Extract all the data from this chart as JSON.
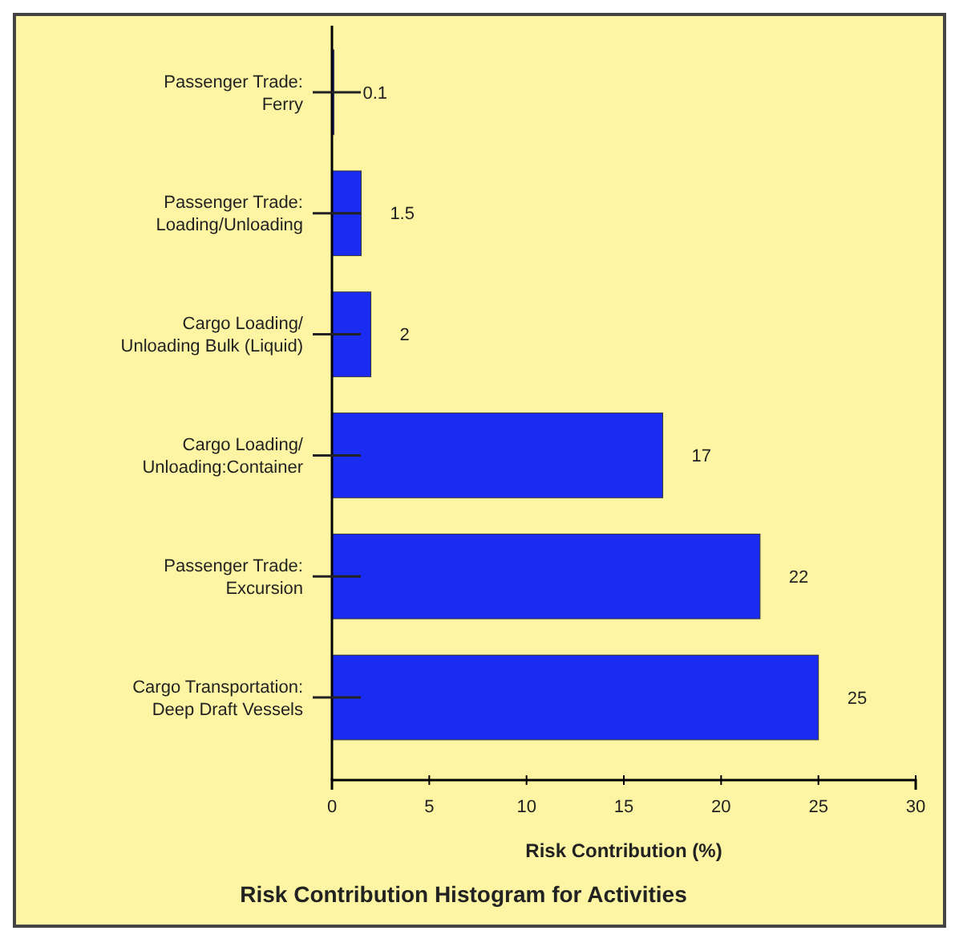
{
  "chart_data": {
    "type": "bar",
    "orientation": "horizontal",
    "title": "Risk Contribution Histogram for Activities",
    "xlabel": "Risk Contribution (%)",
    "categories": [
      "Passenger Trade: Ferry",
      "Passenger Trade: Loading/Unloading",
      "Cargo Loading/ Unloading Bulk (Liquid)",
      "Cargo Loading/ Unloading:Container",
      "Passenger Trade: Excursion",
      "Cargo Transportation: Deep Draft Vessels"
    ],
    "values": [
      0.1,
      1.5,
      2,
      17,
      22,
      25
    ],
    "color": "#1a2cf2",
    "xlim": [
      0,
      30
    ],
    "xticks": [
      0,
      5,
      10,
      15,
      20,
      25,
      30
    ],
    "data_labels": true
  }
}
